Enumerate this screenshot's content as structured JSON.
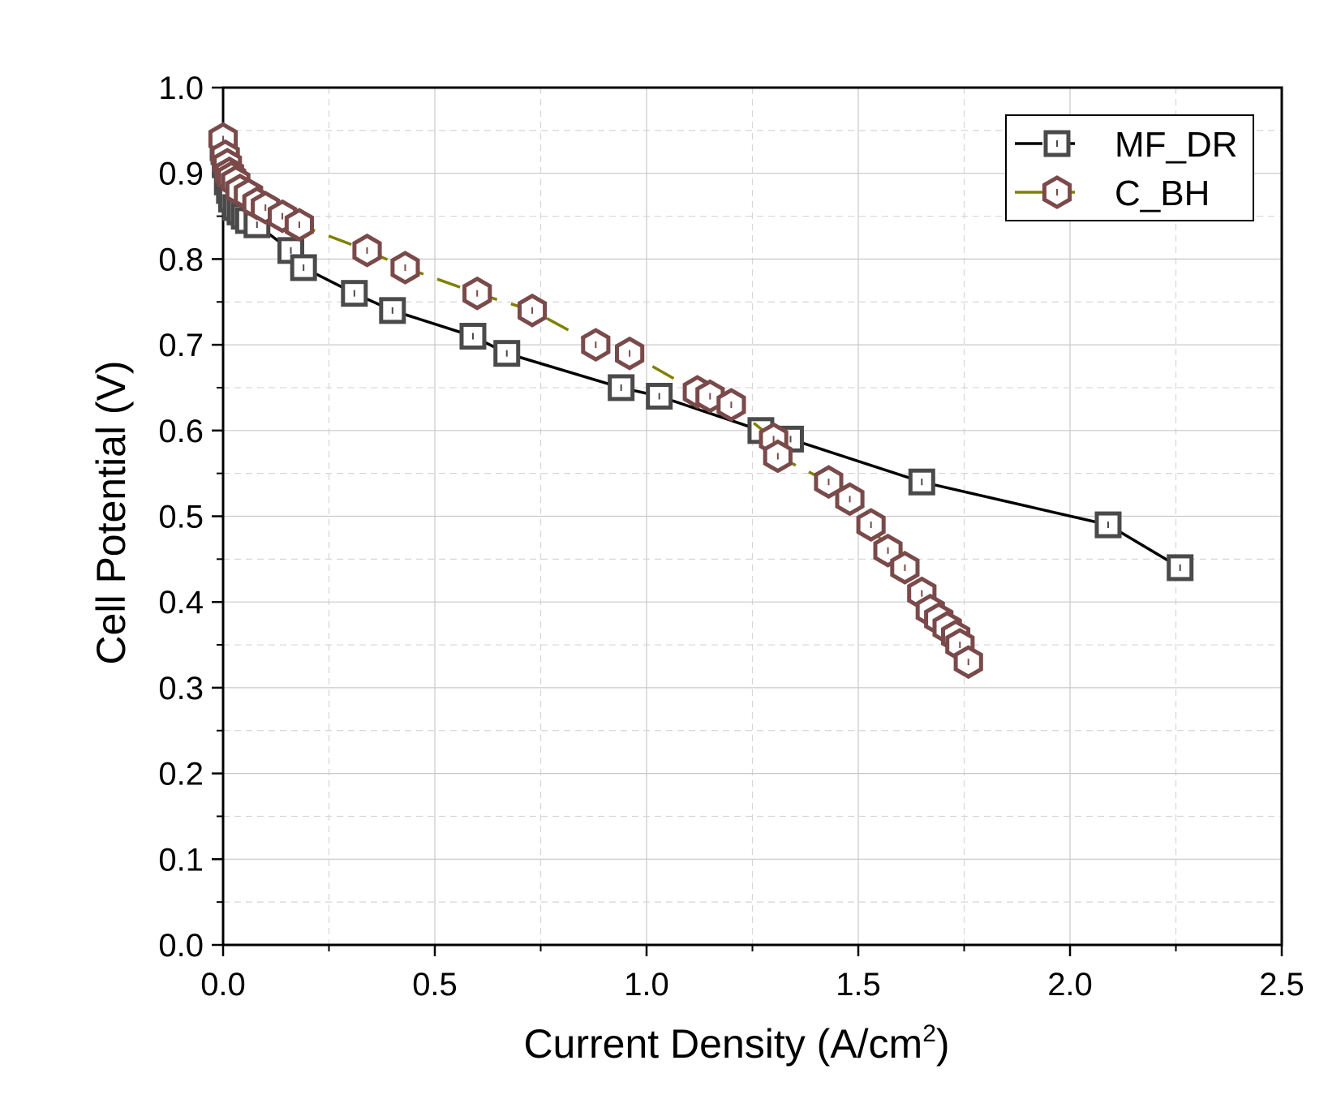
{
  "chart_data": {
    "type": "line",
    "xlabel": "Current Density (A/cm",
    "xlabel_sup": "2",
    "xlabel_close": ")",
    "ylabel": "Cell Potential (V)",
    "xlim": [
      0,
      2.5
    ],
    "ylim": [
      0,
      1.0
    ],
    "xticks": [
      "0.0",
      "0.5",
      "1.0",
      "1.5",
      "2.0",
      "2.5"
    ],
    "yticks": [
      "0.0",
      "0.1",
      "0.2",
      "0.3",
      "0.4",
      "0.5",
      "0.6",
      "0.7",
      "0.8",
      "0.9",
      "1.0"
    ],
    "grid": true,
    "legend_position": "top-right",
    "series": [
      {
        "name": "MF_DR",
        "marker": "square",
        "line_style": "solid",
        "line_color": "#000000",
        "marker_color": "#4a4a4a",
        "x": [
          0.0,
          0.005,
          0.01,
          0.015,
          0.02,
          0.03,
          0.04,
          0.05,
          0.06,
          0.08,
          0.16,
          0.19,
          0.31,
          0.4,
          0.59,
          0.67,
          0.94,
          1.03,
          1.27,
          1.34,
          1.65,
          2.09,
          2.26
        ],
        "y": [
          0.93,
          0.91,
          0.89,
          0.88,
          0.87,
          0.86,
          0.855,
          0.85,
          0.845,
          0.84,
          0.81,
          0.79,
          0.76,
          0.74,
          0.71,
          0.69,
          0.65,
          0.64,
          0.6,
          0.59,
          0.54,
          0.49,
          0.44
        ]
      },
      {
        "name": "C_BH",
        "marker": "hexagon",
        "line_style": "dashed",
        "line_color": "#808000",
        "marker_color": "#7a4a4a",
        "x": [
          0.0,
          0.005,
          0.01,
          0.015,
          0.02,
          0.03,
          0.04,
          0.06,
          0.08,
          0.1,
          0.14,
          0.18,
          0.34,
          0.43,
          0.6,
          0.73,
          0.88,
          0.96,
          1.12,
          1.15,
          1.2,
          1.3,
          1.31,
          1.43,
          1.48,
          1.53,
          1.57,
          1.61,
          1.65,
          1.67,
          1.69,
          1.71,
          1.73,
          1.74,
          1.76
        ],
        "y": [
          0.94,
          0.92,
          0.91,
          0.9,
          0.895,
          0.89,
          0.88,
          0.875,
          0.865,
          0.86,
          0.85,
          0.84,
          0.81,
          0.79,
          0.76,
          0.74,
          0.7,
          0.69,
          0.645,
          0.64,
          0.63,
          0.59,
          0.57,
          0.54,
          0.52,
          0.49,
          0.46,
          0.44,
          0.41,
          0.39,
          0.38,
          0.37,
          0.36,
          0.35,
          0.33
        ]
      }
    ]
  }
}
